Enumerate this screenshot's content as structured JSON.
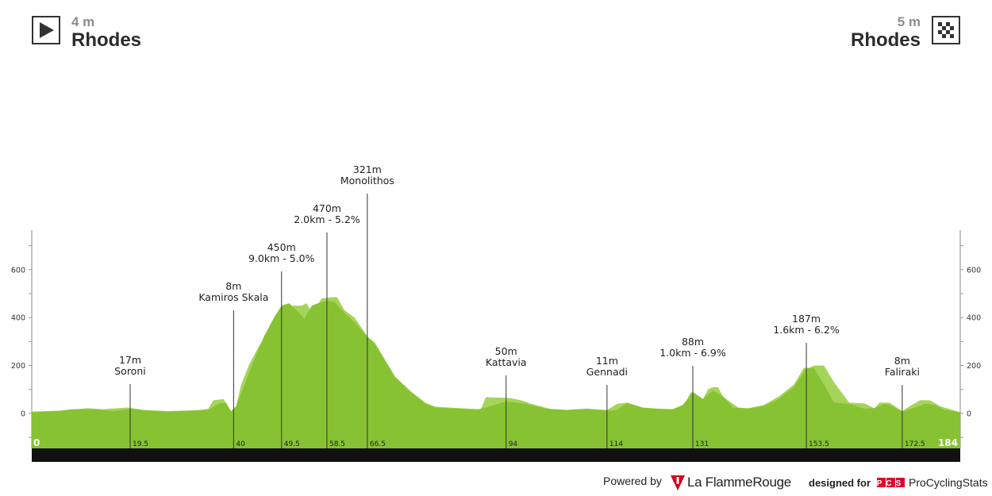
{
  "start": {
    "altitude": "4 m",
    "place": "Rhodes"
  },
  "finish": {
    "altitude": "5 m",
    "place": "Rhodes"
  },
  "chart_data": {
    "type": "area",
    "xlim": [
      0,
      184
    ],
    "ylim": [
      -150,
      750
    ],
    "y_ticks": [
      0,
      200,
      400,
      600
    ],
    "km_markers": [
      "0",
      "19.5",
      "40",
      "49.5",
      "58.5",
      "66.5",
      "94",
      "114",
      "131",
      "153.5",
      "172.5",
      "184"
    ],
    "profile": {
      "x": [
        0,
        5,
        8,
        13,
        16,
        20,
        24,
        27,
        30,
        33,
        35,
        37,
        38.5,
        39.5,
        40.5,
        42,
        44,
        46,
        48,
        49.5,
        51,
        53,
        54,
        55.5,
        57,
        58.5,
        60,
        62,
        64,
        66.5,
        68,
        70,
        72,
        75,
        78,
        80,
        85,
        88,
        90,
        94,
        98,
        102,
        106,
        110,
        114,
        116,
        118,
        121,
        124,
        127,
        129,
        131,
        133,
        135,
        137,
        139,
        142,
        145,
        148,
        151,
        153.5,
        155,
        157,
        159,
        162,
        165,
        167,
        169,
        170,
        172.5,
        175,
        177,
        179,
        181,
        184
      ],
      "y": [
        5,
        10,
        18,
        17,
        10,
        20,
        10,
        8,
        10,
        12,
        15,
        40,
        45,
        8,
        30,
        110,
        220,
        320,
        400,
        450,
        460,
        420,
        395,
        450,
        462,
        470,
        465,
        420,
        380,
        321,
        290,
        220,
        150,
        90,
        40,
        25,
        20,
        15,
        25,
        50,
        40,
        20,
        15,
        20,
        11,
        15,
        45,
        25,
        20,
        18,
        35,
        88,
        60,
        95,
        70,
        25,
        20,
        30,
        60,
        110,
        187,
        190,
        120,
        45,
        40,
        20,
        22,
        40,
        35,
        8,
        25,
        40,
        35,
        15,
        5
      ]
    },
    "climb_profile": {
      "x": [
        0,
        6,
        11,
        14,
        19,
        22,
        27,
        33,
        35,
        36,
        38,
        39.5,
        40.5,
        41.5,
        43,
        45,
        46.5,
        47.5,
        49.5,
        51.5,
        53.5,
        54.5,
        55.5,
        57.5,
        59.5,
        60.5,
        62,
        64,
        66.5,
        68,
        70,
        72,
        75,
        78,
        80,
        85,
        89,
        90,
        94.5,
        97,
        99,
        103,
        106,
        110,
        114,
        116,
        118,
        121,
        126,
        129,
        130.5,
        131,
        133,
        134,
        135,
        136,
        137,
        140,
        142,
        145,
        148,
        151,
        153,
        154,
        155,
        157,
        159,
        162,
        165,
        167,
        168,
        170,
        172.5,
        174,
        176,
        178,
        180,
        184
      ],
      "y": [
        8,
        12,
        22,
        18,
        25,
        15,
        10,
        14,
        20,
        55,
        60,
        10,
        30,
        120,
        200,
        280,
        330,
        320,
        450,
        450,
        450,
        460,
        420,
        480,
        485,
        485,
        430,
        400,
        321,
        295,
        225,
        155,
        95,
        45,
        28,
        22,
        18,
        68,
        65,
        55,
        40,
        18,
        14,
        20,
        15,
        40,
        45,
        18,
        18,
        20,
        85,
        90,
        60,
        100,
        110,
        110,
        70,
        25,
        22,
        35,
        70,
        120,
        190,
        190,
        200,
        200,
        130,
        45,
        42,
        22,
        45,
        45,
        10,
        30,
        55,
        55,
        30,
        5
      ]
    },
    "summits": [
      {
        "km": 19.5,
        "lines": [
          "17m",
          "Soroni"
        ],
        "label_y": 458
      },
      {
        "km": 40,
        "lines": [
          "8m",
          "Kamiros Skala"
        ],
        "label_y": 365
      },
      {
        "km": 49.5,
        "lines": [
          "450m",
          "9.0km - 5.0%"
        ],
        "label_y": 316
      },
      {
        "km": 58.5,
        "lines": [
          "470m",
          "2.0km - 5.2%"
        ],
        "label_y": 267
      },
      {
        "km": 66.5,
        "lines": [
          "321m",
          "Monolithos"
        ],
        "label_y": 218
      },
      {
        "km": 94,
        "lines": [
          "50m",
          "Kattavia"
        ],
        "label_y": 447
      },
      {
        "km": 114,
        "lines": [
          "11m",
          "Gennadi"
        ],
        "label_y": 459
      },
      {
        "km": 131,
        "lines": [
          "88m",
          "1.0km - 6.9%"
        ],
        "label_y": 435
      },
      {
        "km": 153.5,
        "lines": [
          "187m",
          "1.6km - 6.2%"
        ],
        "label_y": 406
      },
      {
        "km": 172.5,
        "lines": [
          "8m",
          "Faliraki"
        ],
        "label_y": 459
      }
    ],
    "colors": {
      "profile": "#86c232",
      "climb": "#a5d45a",
      "baseline_bar": "#111111",
      "text": "#222222"
    }
  },
  "footer": {
    "powered_by": "Powered by",
    "lfr_name": "La FlammeRouge",
    "designed_for": "designed for",
    "pcs_logo": "PCS",
    "pcs_name": "ProCyclingStats"
  }
}
